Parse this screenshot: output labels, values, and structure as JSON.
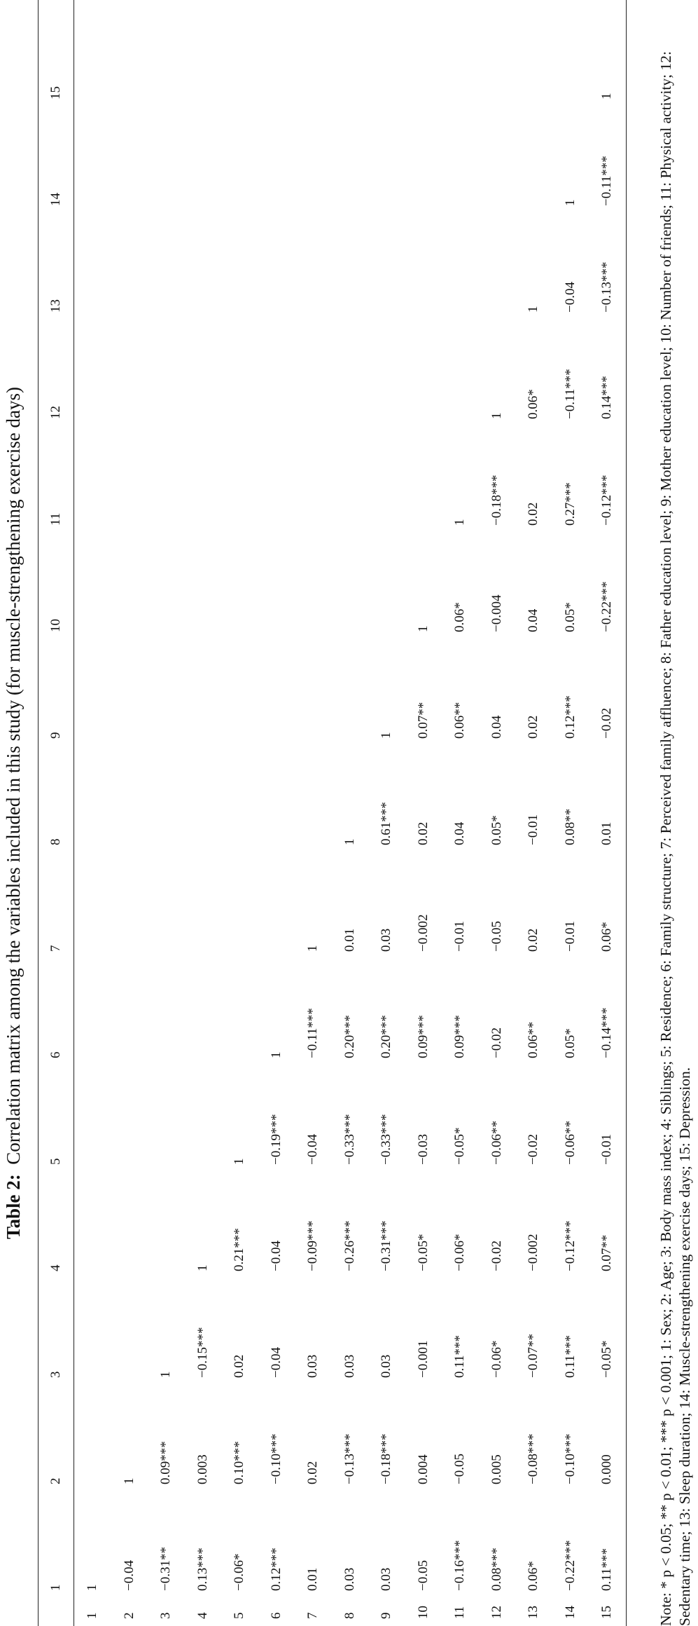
{
  "title": {
    "label": "Table 2:",
    "text": "Correlation matrix among the variables included in this study (for muscle-strengthening exercise days)"
  },
  "table": {
    "header": [
      "",
      "1",
      "2",
      "3",
      "4",
      "5",
      "6",
      "7",
      "8",
      "9",
      "10",
      "11",
      "12",
      "13",
      "14",
      "15"
    ],
    "rows": [
      [
        "1",
        "1"
      ],
      [
        "2",
        "−0.04",
        "1"
      ],
      [
        "3",
        "−0.31**",
        "0.09***",
        "1"
      ],
      [
        "4",
        "0.13***",
        "0.003",
        "−0.15***",
        "1"
      ],
      [
        "5",
        "−0.06*",
        "0.10***",
        "0.02",
        "0.21***",
        "1"
      ],
      [
        "6",
        "0.12***",
        "−0.10***",
        "−0.04",
        "−0.04",
        "−0.19***",
        "1"
      ],
      [
        "7",
        "0.01",
        "0.02",
        "0.03",
        "−0.09***",
        "−0.04",
        "−0.11***",
        "1"
      ],
      [
        "8",
        "0.03",
        "−0.13***",
        "0.03",
        "−0.26***",
        "−0.33***",
        "0.20***",
        "0.01",
        "1"
      ],
      [
        "9",
        "0.03",
        "−0.18***",
        "0.03",
        "−0.31***",
        "−0.33***",
        "0.20***",
        "0.03",
        "0.61***",
        "1"
      ],
      [
        "10",
        "−0.05",
        "0.004",
        "−0.001",
        "−0.05*",
        "−0.03",
        "0.09***",
        "−0.002",
        "0.02",
        "0.07**",
        "1"
      ],
      [
        "11",
        "−0.16***",
        "−0.05",
        "0.11***",
        "−0.06*",
        "−0.05*",
        "0.09***",
        "−0.01",
        "0.04",
        "0.06**",
        "0.06*",
        "1"
      ],
      [
        "12",
        "0.08***",
        "0.005",
        "−0.06*",
        "−0.02",
        "−0.06**",
        "−0.02",
        "−0.05",
        "0.05*",
        "0.04",
        "−0.004",
        "−0.18***",
        "1"
      ],
      [
        "13",
        "0.06*",
        "−0.08***",
        "−0.07**",
        "−0.002",
        "−0.02",
        "0.06**",
        "0.02",
        "−0.01",
        "0.02",
        "0.04",
        "0.02",
        "0.06*",
        "1"
      ],
      [
        "14",
        "−0.22***",
        "−0.10***",
        "0.11***",
        "−0.12***",
        "−0.06**",
        "0.05*",
        "−0.01",
        "0.08**",
        "0.12***",
        "0.05*",
        "0.27***",
        "−0.11***",
        "−0.04",
        "1"
      ],
      [
        "15",
        "0.11***",
        "0.000",
        "−0.05*",
        "0.07**",
        "−0.01",
        "−0.14***",
        "0.06*",
        "0.01",
        "−0.02",
        "−0.22***",
        "−0.12***",
        "0.14***",
        "−0.13***",
        "−0.11***",
        "1"
      ]
    ]
  },
  "note": "Note: * p < 0.05; ** p < 0.01; *** p < 0.001; 1: Sex; 2: Age; 3: Body mass index; 4: Siblings; 5: Residence; 6: Family structure; 7: Perceived family affluence; 8: Father education level; 9: Mother education level; 10: Number of friends; 11: Physical activity; 12: Sedentary time; 13: Sleep duration; 14: Muscle-strengthening exercise days; 15: Depression."
}
